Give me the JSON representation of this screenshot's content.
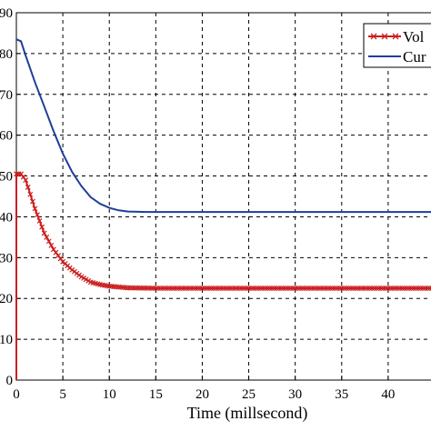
{
  "chart_data": {
    "type": "line",
    "xlabel": "Time (millsecond)",
    "ylabel": "",
    "xlim": [
      0,
      45
    ],
    "ylim": [
      0,
      90
    ],
    "grid": true,
    "legend_position": "top-right",
    "x_ticks": [
      "0",
      "5",
      "10",
      "15",
      "20",
      "25",
      "30",
      "35",
      "40",
      "4"
    ],
    "y_ticks": [
      "0",
      "10",
      "20",
      "30",
      "40",
      "50",
      "60",
      "70",
      "80",
      "90"
    ],
    "y_tick_labels_visible": [
      "0",
      "10",
      "20",
      "30",
      "40",
      "50",
      "60",
      "70",
      "80",
      "90"
    ],
    "series": [
      {
        "name": "Vol",
        "color": "#cc1f1f",
        "marker": "x",
        "points": [
          [
            0,
            0
          ],
          [
            0,
            50.5
          ],
          [
            0.5,
            50.5
          ],
          [
            1,
            49
          ],
          [
            2,
            42
          ],
          [
            3,
            36
          ],
          [
            4,
            32
          ],
          [
            5,
            29
          ],
          [
            6,
            27
          ],
          [
            7,
            25.3
          ],
          [
            8,
            24
          ],
          [
            9,
            23.4
          ],
          [
            10,
            23.0
          ],
          [
            12,
            22.6
          ],
          [
            15,
            22.5
          ],
          [
            20,
            22.5
          ],
          [
            30,
            22.5
          ],
          [
            40,
            22.5
          ],
          [
            45,
            22.5
          ]
        ]
      },
      {
        "name": "Cur",
        "color": "#1f3f99",
        "marker": "none",
        "points": [
          [
            0,
            83.5
          ],
          [
            0.5,
            83
          ],
          [
            1,
            79.5
          ],
          [
            2,
            73
          ],
          [
            3,
            67
          ],
          [
            4,
            61
          ],
          [
            5,
            55.5
          ],
          [
            6,
            51
          ],
          [
            7,
            47.5
          ],
          [
            8,
            44.8
          ],
          [
            9,
            43.2
          ],
          [
            10,
            42.2
          ],
          [
            11,
            41.6
          ],
          [
            12,
            41.3
          ],
          [
            14,
            41.2
          ],
          [
            20,
            41.2
          ],
          [
            30,
            41.2
          ],
          [
            40,
            41.2
          ],
          [
            45,
            41.2
          ]
        ]
      }
    ]
  }
}
